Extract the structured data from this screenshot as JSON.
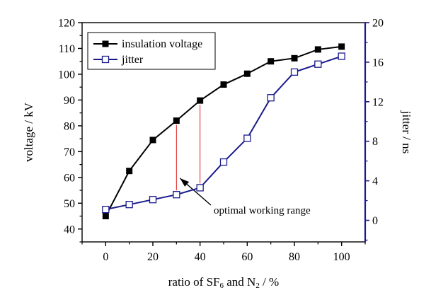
{
  "chart_data": {
    "type": "line",
    "xlabel_parts": [
      "ratio of SF",
      "6",
      " and N",
      "2",
      " / %"
    ],
    "ylabel": "voltage / kV",
    "y2label": "jitter / ns",
    "xlim": [
      -10,
      110
    ],
    "ylim": [
      35,
      120
    ],
    "y2lim": [
      -2.18,
      20
    ],
    "xticks": [
      0,
      20,
      40,
      60,
      80,
      100
    ],
    "yticks": [
      40,
      50,
      60,
      70,
      80,
      90,
      100,
      110,
      120
    ],
    "y2ticks": [
      0,
      4,
      8,
      12,
      16,
      20
    ],
    "x": [
      0,
      10,
      20,
      30,
      40,
      50,
      60,
      70,
      80,
      90,
      100
    ],
    "series": [
      {
        "name": "insulation voltage",
        "axis": "left",
        "marker": "filled-square",
        "color": "#000000",
        "values": [
          45,
          62.5,
          74.5,
          82,
          89.8,
          96,
          100.2,
          105,
          106.2,
          109.6,
          110.7
        ]
      },
      {
        "name": "jitter",
        "axis": "right",
        "marker": "open-square",
        "color": "#1a1a8c",
        "values": [
          1.1,
          1.6,
          2.1,
          2.6,
          3.3,
          5.9,
          8.3,
          12.4,
          15.0,
          15.8,
          16.6
        ]
      }
    ],
    "legend": {
      "position": "top-left"
    },
    "annotation": {
      "text": "optimal working range",
      "range": [
        30,
        40
      ]
    }
  }
}
